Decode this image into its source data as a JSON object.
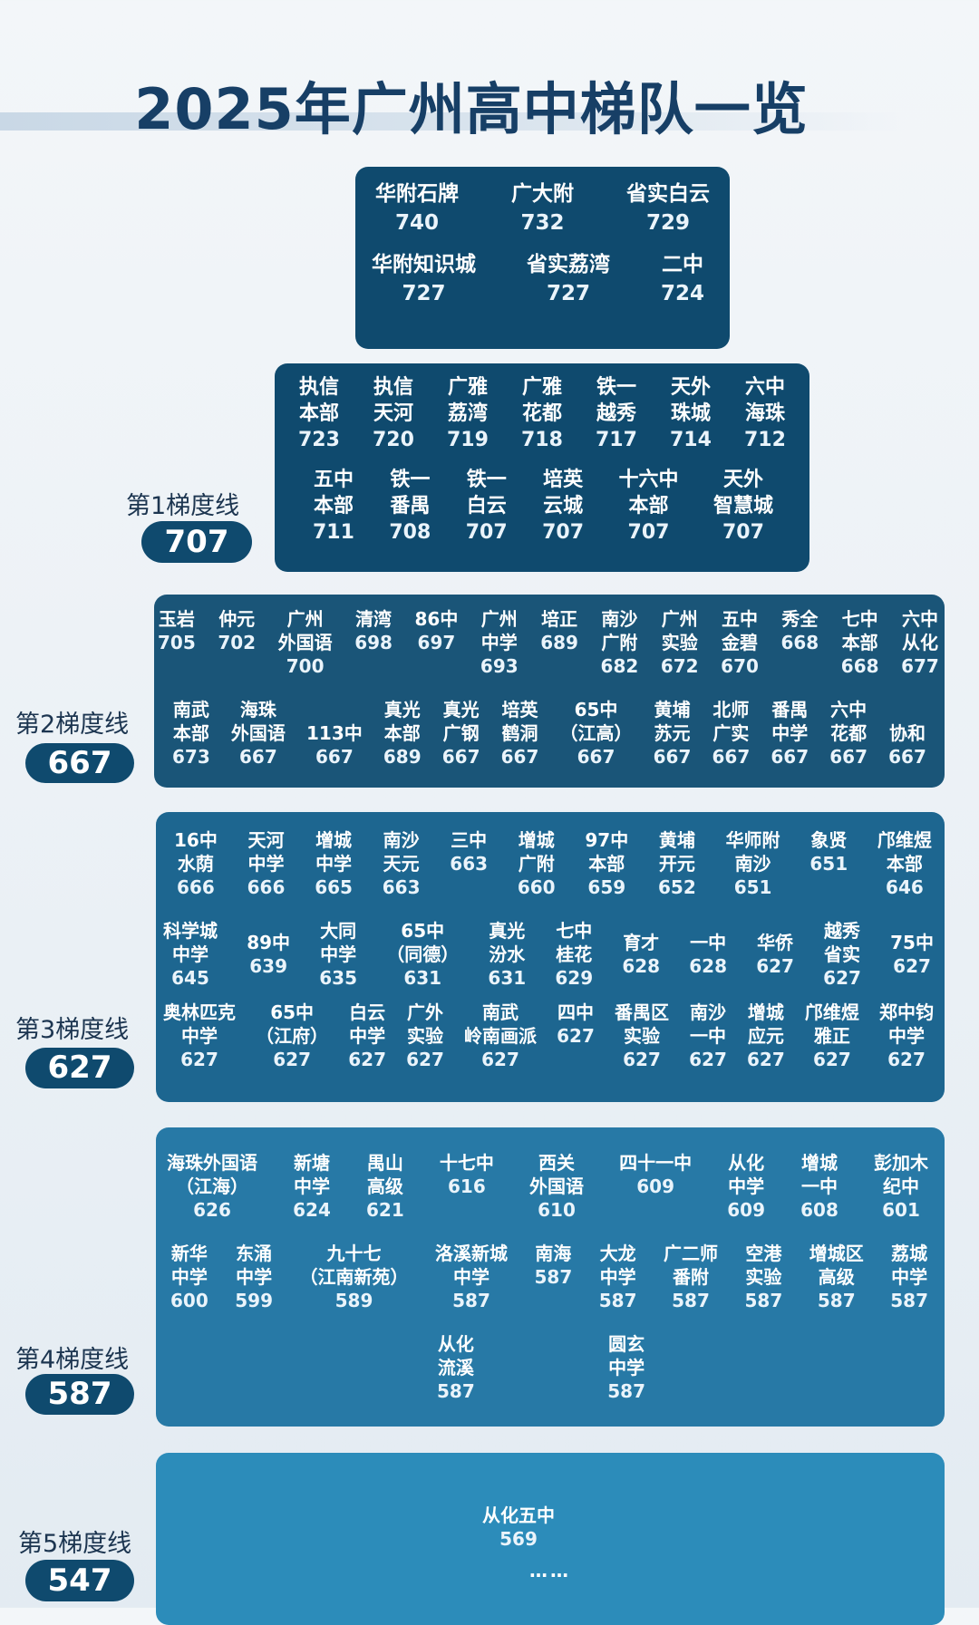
{
  "title": "2025年广州高中梯队一览",
  "colors": {
    "title": "#173f66",
    "top_box": "#0f4a6e",
    "tier2": "#1a5578",
    "tier3": "#1d6690",
    "tier4": "#2779a6",
    "tier5": "#2c8cba"
  },
  "tiers": [
    {
      "line_label": "第1梯度线",
      "line_score": "707",
      "boxes": [
        {
          "rows": [
            [
              {
                "name": [
                  "华附石牌"
                ],
                "score": "740"
              },
              {
                "name": [
                  "广大附"
                ],
                "score": "732"
              },
              {
                "name": [
                  "省实白云"
                ],
                "score": "729"
              }
            ],
            [
              {
                "name": [
                  "华附知识城"
                ],
                "score": "727"
              },
              {
                "name": [
                  "省实荔湾"
                ],
                "score": "727"
              },
              {
                "name": [
                  "二中"
                ],
                "score": "724"
              }
            ]
          ]
        },
        {
          "rows": [
            [
              {
                "name": [
                  "执信",
                  "本部"
                ],
                "score": "723"
              },
              {
                "name": [
                  "执信",
                  "天河"
                ],
                "score": "720"
              },
              {
                "name": [
                  "广雅",
                  "荔湾"
                ],
                "score": "719"
              },
              {
                "name": [
                  "广雅",
                  "花都"
                ],
                "score": "718"
              },
              {
                "name": [
                  "铁一",
                  "越秀"
                ],
                "score": "717"
              },
              {
                "name": [
                  "天外",
                  "珠城"
                ],
                "score": "714"
              },
              {
                "name": [
                  "六中",
                  "海珠"
                ],
                "score": "712"
              }
            ],
            [
              {
                "name": [
                  "五中",
                  "本部"
                ],
                "score": "711"
              },
              {
                "name": [
                  "铁一",
                  "番禺"
                ],
                "score": "708"
              },
              {
                "name": [
                  "铁一",
                  "白云"
                ],
                "score": "707"
              },
              {
                "name": [
                  "培英",
                  "云城"
                ],
                "score": "707"
              },
              {
                "name": [
                  "十六中",
                  "本部"
                ],
                "score": "707"
              },
              {
                "name": [
                  "天外",
                  "智慧城"
                ],
                "score": "707"
              }
            ]
          ]
        }
      ]
    },
    {
      "line_label": "第2梯度线",
      "line_score": "667",
      "boxes": [
        {
          "rows": [
            [
              {
                "name": [
                  "玉岩"
                ],
                "score": "705"
              },
              {
                "name": [
                  "仲元"
                ],
                "score": "702"
              },
              {
                "name": [
                  "广州",
                  "外国语"
                ],
                "score": "700"
              },
              {
                "name": [
                  "清湾"
                ],
                "score": "698"
              },
              {
                "name": [
                  "86中"
                ],
                "score": "697"
              },
              {
                "name": [
                  "广州",
                  "中学"
                ],
                "score": "693"
              },
              {
                "name": [
                  "培正"
                ],
                "score": "689"
              },
              {
                "name": [
                  "南沙",
                  "广附"
                ],
                "score": "682"
              },
              {
                "name": [
                  "广州",
                  "实验"
                ],
                "score": "672"
              },
              {
                "name": [
                  "五中",
                  "金碧"
                ],
                "score": "670"
              },
              {
                "name": [
                  "秀全"
                ],
                "score": "668"
              },
              {
                "name": [
                  "七中",
                  "本部"
                ],
                "score": "668"
              },
              {
                "name": [
                  "六中",
                  "从化"
                ],
                "score": "677"
              }
            ],
            [
              {
                "name": [
                  "南武",
                  "本部"
                ],
                "score": "673"
              },
              {
                "name": [
                  "海珠",
                  "外国语"
                ],
                "score": "667"
              },
              {
                "name": [
                  "",
                  "113中"
                ],
                "score": "667"
              },
              {
                "name": [
                  "真光",
                  "本部"
                ],
                "score": "689"
              },
              {
                "name": [
                  "真光",
                  "广钢"
                ],
                "score": "667"
              },
              {
                "name": [
                  "培英",
                  "鹤洞"
                ],
                "score": "667"
              },
              {
                "name": [
                  "65中",
                  "（江高）"
                ],
                "score": "667"
              },
              {
                "name": [
                  "黄埔",
                  "苏元"
                ],
                "score": "667"
              },
              {
                "name": [
                  "北师",
                  "广实"
                ],
                "score": "667"
              },
              {
                "name": [
                  "番禺",
                  "中学"
                ],
                "score": "667"
              },
              {
                "name": [
                  "六中",
                  "花都"
                ],
                "score": "667"
              },
              {
                "name": [
                  "",
                  "协和"
                ],
                "score": "667"
              }
            ]
          ]
        }
      ]
    },
    {
      "line_label": "第3梯度线",
      "line_score": "627",
      "boxes": [
        {
          "rows": [
            [
              {
                "name": [
                  "16中",
                  "水荫"
                ],
                "score": "666"
              },
              {
                "name": [
                  "天河",
                  "中学"
                ],
                "score": "666"
              },
              {
                "name": [
                  "增城",
                  "中学"
                ],
                "score": "665"
              },
              {
                "name": [
                  "南沙",
                  "天元"
                ],
                "score": "663"
              },
              {
                "name": [
                  "三中"
                ],
                "score": "663"
              },
              {
                "name": [
                  "增城",
                  "广附"
                ],
                "score": "660"
              },
              {
                "name": [
                  "97中",
                  "本部"
                ],
                "score": "659"
              },
              {
                "name": [
                  "黄埔",
                  "开元"
                ],
                "score": "652"
              },
              {
                "name": [
                  "华师附",
                  "南沙"
                ],
                "score": "651"
              },
              {
                "name": [
                  "象贤"
                ],
                "score": "651"
              },
              {
                "name": [
                  "邝维煜",
                  "本部"
                ],
                "score": "646"
              }
            ],
            [
              {
                "name": [
                  "科学城",
                  "中学"
                ],
                "score": "645"
              },
              {
                "name": [
                  "89中"
                ],
                "score": "639"
              },
              {
                "name": [
                  "大同",
                  "中学"
                ],
                "score": "635"
              },
              {
                "name": [
                  "65中",
                  "（同德）"
                ],
                "score": "631"
              },
              {
                "name": [
                  "真光",
                  "汾水"
                ],
                "score": "631"
              },
              {
                "name": [
                  "七中",
                  "桂花"
                ],
                "score": "629"
              },
              {
                "name": [
                  "育才"
                ],
                "score": "628"
              },
              {
                "name": [
                  "一中"
                ],
                "score": "628"
              },
              {
                "name": [
                  "华侨"
                ],
                "score": "627"
              },
              {
                "name": [
                  "越秀",
                  "省实"
                ],
                "score": "627"
              },
              {
                "name": [
                  "75中"
                ],
                "score": "627"
              }
            ],
            [
              {
                "name": [
                  "奥林匹克",
                  "中学"
                ],
                "score": "627"
              },
              {
                "name": [
                  "65中",
                  "（江府）"
                ],
                "score": "627"
              },
              {
                "name": [
                  "白云",
                  "中学"
                ],
                "score": "627"
              },
              {
                "name": [
                  "广外",
                  "实验"
                ],
                "score": "627"
              },
              {
                "name": [
                  "南武",
                  "岭南画派"
                ],
                "score": "627"
              },
              {
                "name": [
                  "四中"
                ],
                "score": "627"
              },
              {
                "name": [
                  "番禺区",
                  "实验"
                ],
                "score": "627"
              },
              {
                "name": [
                  "南沙",
                  "一中"
                ],
                "score": "627"
              },
              {
                "name": [
                  "增城",
                  "应元"
                ],
                "score": "627"
              },
              {
                "name": [
                  "邝维煜",
                  "雅正"
                ],
                "score": "627"
              },
              {
                "name": [
                  "郑中钧",
                  "中学"
                ],
                "score": "627"
              }
            ]
          ]
        }
      ]
    },
    {
      "line_label": "第4梯度线",
      "line_score": "587",
      "boxes": [
        {
          "rows": [
            [
              {
                "name": [
                  "海珠外国语",
                  "（江海）"
                ],
                "score": "626"
              },
              {
                "name": [
                  "新塘",
                  "中学"
                ],
                "score": "624"
              },
              {
                "name": [
                  "禺山",
                  "高级"
                ],
                "score": "621"
              },
              {
                "name": [
                  "十七中"
                ],
                "score": "616"
              },
              {
                "name": [
                  "西关",
                  "外国语"
                ],
                "score": "610"
              },
              {
                "name": [
                  "四十一中"
                ],
                "score": "609"
              },
              {
                "name": [
                  "从化",
                  "中学"
                ],
                "score": "609"
              },
              {
                "name": [
                  "增城",
                  "一中"
                ],
                "score": "608"
              },
              {
                "name": [
                  "彭加木",
                  "纪中"
                ],
                "score": "601"
              }
            ],
            [
              {
                "name": [
                  "新华",
                  "中学"
                ],
                "score": "600"
              },
              {
                "name": [
                  "东涌",
                  "中学"
                ],
                "score": "599"
              },
              {
                "name": [
                  "九十七",
                  "（江南新苑）"
                ],
                "score": "589"
              },
              {
                "name": [
                  "洛溪新城",
                  "中学"
                ],
                "score": "587"
              },
              {
                "name": [
                  "南海"
                ],
                "score": "587"
              },
              {
                "name": [
                  "大龙",
                  "中学"
                ],
                "score": "587"
              },
              {
                "name": [
                  "广二师",
                  "番附"
                ],
                "score": "587"
              },
              {
                "name": [
                  "空港",
                  "实验"
                ],
                "score": "587"
              },
              {
                "name": [
                  "增城区",
                  "高级"
                ],
                "score": "587"
              },
              {
                "name": [
                  "荔城",
                  "中学"
                ],
                "score": "587"
              }
            ],
            [
              {
                "name": [
                  "从化",
                  "流溪"
                ],
                "score": "587"
              },
              {
                "name": [
                  "圆玄",
                  "中学"
                ],
                "score": "587"
              }
            ]
          ]
        }
      ]
    },
    {
      "line_label": "第5梯度线",
      "line_score": "547",
      "boxes": [
        {
          "rows": [
            [
              {
                "name": [
                  "从化五中"
                ],
                "score": "569"
              }
            ]
          ]
        }
      ],
      "ellipsis": "……"
    }
  ]
}
